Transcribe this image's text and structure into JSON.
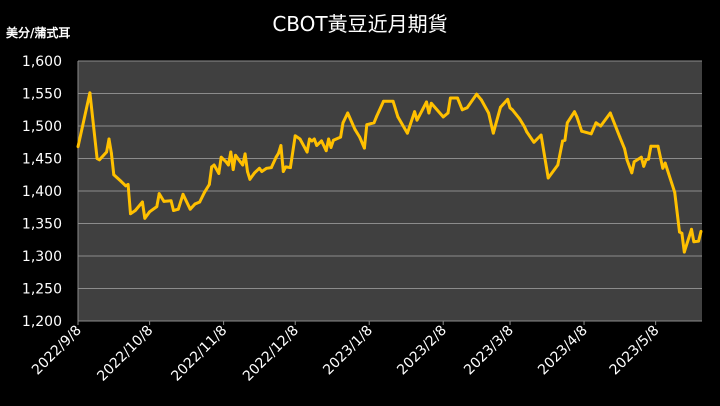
{
  "chart_data": {
    "type": "line",
    "title": "CBOT黃豆近月期貨",
    "ylabel": "美分/蒲式耳",
    "xlabel": "",
    "ylim": [
      1200,
      1600
    ],
    "yticks": [
      1200,
      1250,
      1300,
      1350,
      1400,
      1450,
      1500,
      1550,
      1600
    ],
    "ytick_labels": [
      "1,200",
      "1,250",
      "1,300",
      "1,350",
      "1,400",
      "1,450",
      "1,500",
      "1,550",
      "1,600"
    ],
    "xlim": [
      "2022-09-08",
      "2023-05-27"
    ],
    "xticks": [
      "2022-09-08",
      "2022-10-08",
      "2022-11-08",
      "2022-12-08",
      "2023-01-08",
      "2023-02-08",
      "2023-03-08",
      "2023-04-08",
      "2023-05-08"
    ],
    "xtick_labels": [
      "2022/9/8",
      "2022/10/8",
      "2022/11/8",
      "2022/12/8",
      "2023/1/8",
      "2023/2/8",
      "2023/3/8",
      "2023/4/8",
      "2023/5/8"
    ],
    "grid": "horizontal",
    "colors": {
      "line": "#FFC000",
      "plot_bg": "#404040",
      "grid": "#8C8C8C",
      "background": "#000000"
    },
    "series": [
      {
        "x": [
          "2022-09-08",
          "2022-09-13",
          "2022-09-16",
          "2022-09-17",
          "2022-09-20",
          "2022-09-21",
          "2022-09-22",
          "2022-09-23",
          "2022-09-26",
          "2022-09-28",
          "2022-09-29",
          "2022-09-30",
          "2022-10-02",
          "2022-10-05",
          "2022-10-06",
          "2022-10-08",
          "2022-10-11",
          "2022-10-12",
          "2022-10-14",
          "2022-10-17",
          "2022-10-18",
          "2022-10-20",
          "2022-10-22",
          "2022-10-25",
          "2022-10-27",
          "2022-10-29",
          "2022-10-31",
          "2022-11-02",
          "2022-11-03",
          "2022-11-04",
          "2022-11-06",
          "2022-11-07",
          "2022-11-09",
          "2022-11-10",
          "2022-11-11",
          "2022-11-12",
          "2022-11-13",
          "2022-11-15",
          "2022-11-16",
          "2022-11-17",
          "2022-11-18",
          "2022-11-19",
          "2022-11-21",
          "2022-11-23",
          "2022-11-24",
          "2022-11-26",
          "2022-11-28",
          "2022-11-30",
          "2022-12-01",
          "2022-12-02",
          "2022-12-03",
          "2022-12-04",
          "2022-12-06",
          "2022-12-08",
          "2022-12-10",
          "2022-12-13",
          "2022-12-14",
          "2022-12-15",
          "2022-12-16",
          "2022-12-17",
          "2022-12-19",
          "2022-12-21",
          "2022-12-22",
          "2022-12-23",
          "2022-12-24",
          "2022-12-27",
          "2022-12-28",
          "2022-12-30",
          "2023-01-02",
          "2023-01-04",
          "2023-01-06",
          "2023-01-07",
          "2023-01-10",
          "2023-01-11",
          "2023-01-14",
          "2023-01-18",
          "2023-01-20",
          "2023-01-24",
          "2023-01-27",
          "2023-01-28",
          "2023-02-01",
          "2023-02-02",
          "2023-02-03",
          "2023-02-08",
          "2023-02-10",
          "2023-02-11",
          "2023-02-14",
          "2023-02-16",
          "2023-02-18",
          "2023-02-22",
          "2023-02-24",
          "2023-02-27",
          "2023-03-01",
          "2023-03-04",
          "2023-03-07",
          "2023-03-08",
          "2023-03-09",
          "2023-03-12",
          "2023-03-14",
          "2023-03-15",
          "2023-03-18",
          "2023-03-21",
          "2023-03-24",
          "2023-03-28",
          "2023-03-30",
          "2023-03-31",
          "2023-04-01",
          "2023-04-04",
          "2023-04-05",
          "2023-04-07",
          "2023-04-11",
          "2023-04-13",
          "2023-04-15",
          "2023-04-19",
          "2023-04-23",
          "2023-04-25",
          "2023-04-26",
          "2023-04-28",
          "2023-04-29",
          "2023-05-02",
          "2023-05-03",
          "2023-05-04",
          "2023-05-05",
          "2023-05-06",
          "2023-05-09",
          "2023-05-11",
          "2023-05-12",
          "2023-05-16",
          "2023-05-18",
          "2023-05-19",
          "2023-05-20",
          "2023-05-23",
          "2023-05-24",
          "2023-05-26",
          "2023-05-27"
        ],
        "y": [
          1468,
          1551,
          1450,
          1448,
          1460,
          1480,
          1458,
          1425,
          1415,
          1408,
          1410,
          1365,
          1370,
          1383,
          1358,
          1368,
          1376,
          1396,
          1384,
          1385,
          1370,
          1372,
          1395,
          1372,
          1380,
          1383,
          1398,
          1410,
          1437,
          1440,
          1427,
          1452,
          1445,
          1440,
          1460,
          1433,
          1455,
          1445,
          1440,
          1457,
          1430,
          1418,
          1428,
          1435,
          1430,
          1435,
          1436,
          1452,
          1458,
          1470,
          1430,
          1437,
          1436,
          1485,
          1480,
          1460,
          1480,
          1477,
          1480,
          1470,
          1477,
          1462,
          1480,
          1467,
          1478,
          1483,
          1505,
          1520,
          1495,
          1483,
          1466,
          1502,
          1505,
          1514,
          1538,
          1538,
          1514,
          1489,
          1522,
          1509,
          1537,
          1520,
          1535,
          1514,
          1520,
          1543,
          1543,
          1525,
          1528,
          1549,
          1540,
          1520,
          1489,
          1529,
          1541,
          1528,
          1525,
          1511,
          1499,
          1491,
          1475,
          1486,
          1420,
          1440,
          1477,
          1478,
          1505,
          1522,
          1514,
          1492,
          1488,
          1505,
          1500,
          1520,
          1483,
          1465,
          1448,
          1428,
          1445,
          1452,
          1438,
          1448,
          1449,
          1469,
          1469,
          1435,
          1443,
          1398,
          1337,
          1335,
          1306,
          1341,
          1322,
          1323,
          1338
        ]
      }
    ]
  }
}
